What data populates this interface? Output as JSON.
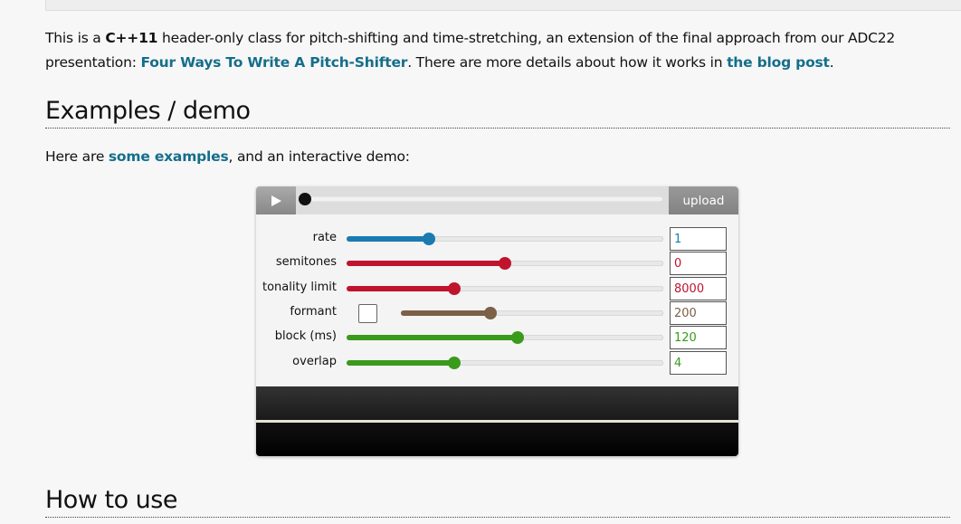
{
  "intro": {
    "t1": "This is a ",
    "b1": "C++11",
    "t2": " header-only class for pitch-shifting and time-stretching, an extension of the final approach from our ADC22 presentation: ",
    "link1": "Four Ways To Write A Pitch-Shifter",
    "t3": ".  There are more details about how it works in ",
    "link2": "the blog post",
    "t4": "."
  },
  "heading1": "Examples / demo",
  "examples": {
    "t1": "Here are ",
    "link": "some examples",
    "t2": ", and an interactive demo:"
  },
  "demo": {
    "play_icon": "play-icon",
    "progress": 0,
    "upload_label": "upload",
    "controls": [
      {
        "label": "rate",
        "value": "1",
        "fraction": 0.26,
        "color": "#1a7bb0"
      },
      {
        "label": "semitones",
        "value": "0",
        "fraction": 0.5,
        "color": "#c0142e"
      },
      {
        "label": "tonality limit",
        "value": "8000",
        "fraction": 0.34,
        "color": "#c0142e"
      },
      {
        "label": "formant",
        "value": "200",
        "fraction": 0.34,
        "color": "#7c6047",
        "checkbox": false
      },
      {
        "label": "block (ms)",
        "value": "120",
        "fraction": 0.54,
        "color": "#3a9a1c"
      },
      {
        "label": "overlap",
        "value": "4",
        "fraction": 0.34,
        "color": "#3a9a1c"
      }
    ]
  },
  "heading2": "How to use"
}
